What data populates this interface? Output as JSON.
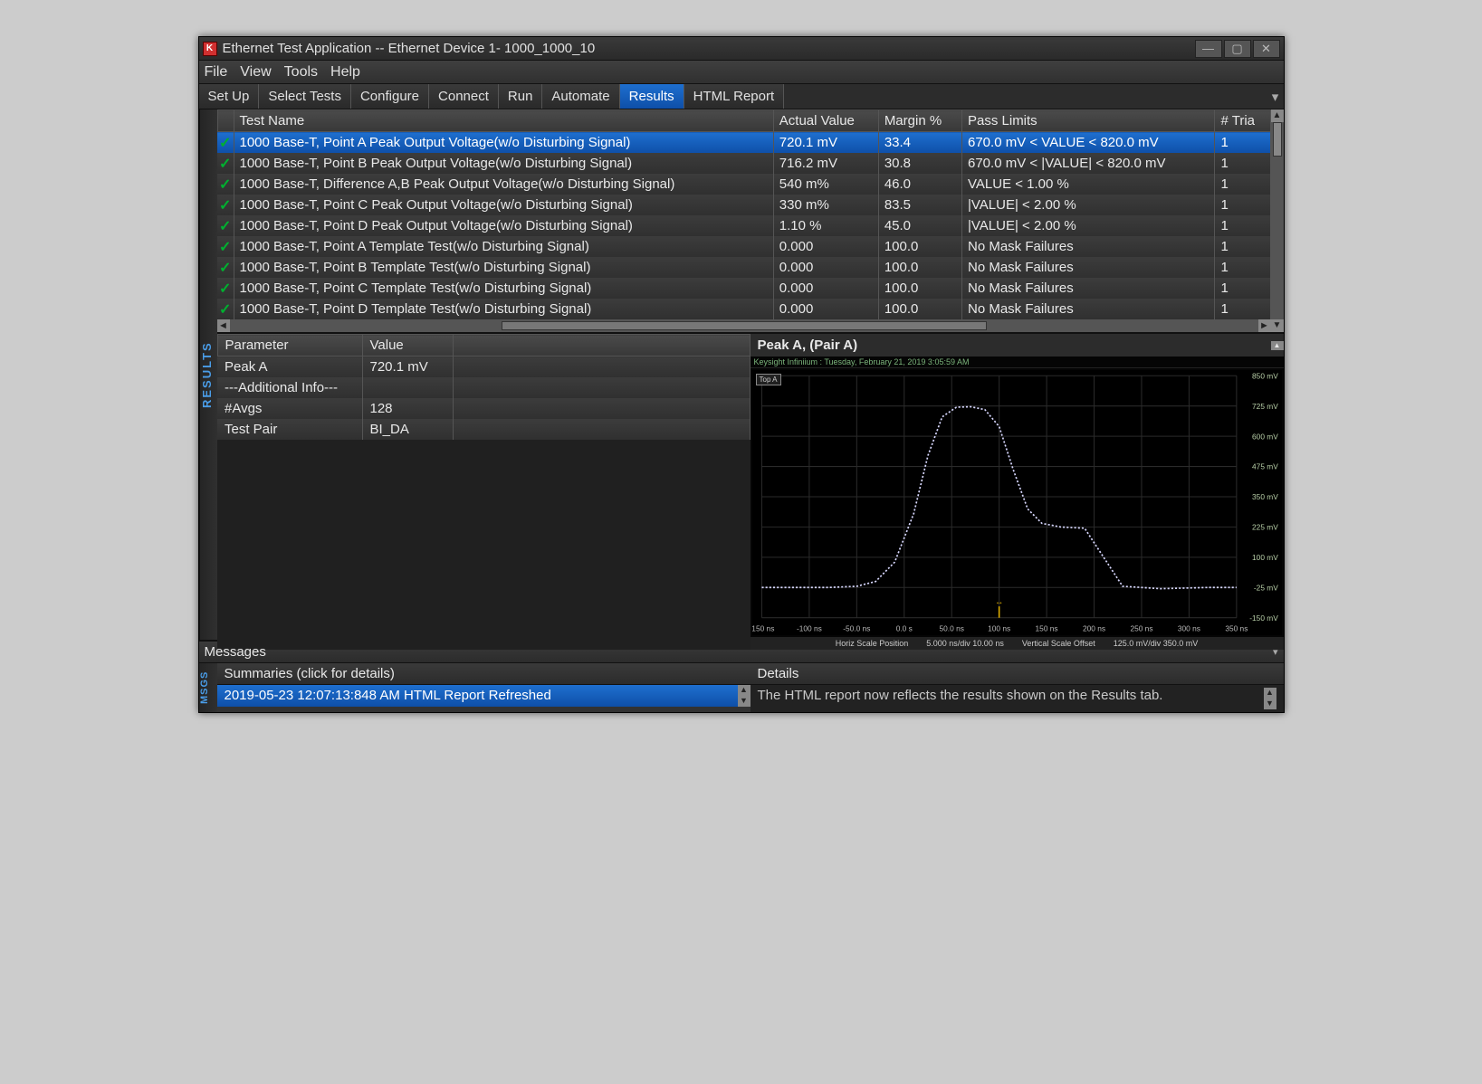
{
  "window": {
    "title": "Ethernet Test Application -- Ethernet Device 1- 1000_1000_10",
    "icon_letter": "K",
    "minimize": "—",
    "maximize": "▢",
    "close": "✕"
  },
  "menu": {
    "items": [
      "File",
      "View",
      "Tools",
      "Help"
    ]
  },
  "tabs": {
    "items": [
      "Set Up",
      "Select Tests",
      "Configure",
      "Connect",
      "Run",
      "Automate",
      "Results",
      "HTML Report"
    ],
    "active_index": 6
  },
  "side_label": "RESULTS",
  "results_table": {
    "columns": [
      "",
      "Test Name",
      "Actual Value",
      "Margin %",
      "Pass Limits",
      "# Tria"
    ],
    "selected_index": 0,
    "rows": [
      {
        "pass": true,
        "name": "1000 Base-T, Point A Peak Output Voltage(w/o Disturbing Signal)",
        "actual": "720.1 mV",
        "margin": "33.4",
        "limits": "670.0 mV < VALUE < 820.0 mV",
        "trials": "1"
      },
      {
        "pass": true,
        "name": "1000 Base-T, Point B Peak Output Voltage(w/o Disturbing Signal)",
        "actual": "716.2 mV",
        "margin": "30.8",
        "limits": "670.0 mV < |VALUE| < 820.0 mV",
        "trials": "1"
      },
      {
        "pass": true,
        "name": "1000 Base-T, Difference A,B Peak Output Voltage(w/o Disturbing Signal)",
        "actual": "540 m%",
        "margin": "46.0",
        "limits": "VALUE < 1.00 %",
        "trials": "1"
      },
      {
        "pass": true,
        "name": "1000 Base-T, Point C Peak Output Voltage(w/o Disturbing Signal)",
        "actual": "330 m%",
        "margin": "83.5",
        "limits": "|VALUE| < 2.00 %",
        "trials": "1"
      },
      {
        "pass": true,
        "name": "1000 Base-T, Point D Peak Output Voltage(w/o Disturbing Signal)",
        "actual": "1.10 %",
        "margin": "45.0",
        "limits": "|VALUE| < 2.00 %",
        "trials": "1"
      },
      {
        "pass": true,
        "name": "1000 Base-T, Point A Template Test(w/o Disturbing Signal)",
        "actual": "0.000",
        "margin": "100.0",
        "limits": "No Mask Failures",
        "trials": "1"
      },
      {
        "pass": true,
        "name": "1000 Base-T, Point B Template Test(w/o Disturbing Signal)",
        "actual": "0.000",
        "margin": "100.0",
        "limits": "No Mask Failures",
        "trials": "1"
      },
      {
        "pass": true,
        "name": "1000 Base-T, Point C Template Test(w/o Disturbing Signal)",
        "actual": "0.000",
        "margin": "100.0",
        "limits": "No Mask Failures",
        "trials": "1"
      },
      {
        "pass": true,
        "name": "1000 Base-T, Point D Template Test(w/o Disturbing Signal)",
        "actual": "0.000",
        "margin": "100.0",
        "limits": "No Mask Failures",
        "trials": "1"
      }
    ]
  },
  "param_table": {
    "columns": [
      "Parameter",
      "Value",
      ""
    ],
    "rows": [
      {
        "p": "Peak A",
        "v": "720.1 mV"
      },
      {
        "p": "---Additional Info---",
        "v": ""
      },
      {
        "p": "#Avgs",
        "v": "128"
      },
      {
        "p": "Test Pair",
        "v": "BI_DA"
      }
    ]
  },
  "chart": {
    "title": "Peak A, (Pair A)",
    "meta_caption": "Keysight Infiniium : Tuesday, February 21, 2019 3:05:59 AM",
    "badge": "Top A",
    "type": "line",
    "x_domain_ns": [
      -150,
      350
    ],
    "y_domain_mv": [
      -150,
      850
    ],
    "y_ticks": [
      {
        "v": 850,
        "label": "850 mV"
      },
      {
        "v": 725,
        "label": "725 mV"
      },
      {
        "v": 600,
        "label": "600 mV"
      },
      {
        "v": 475,
        "label": "475 mV"
      },
      {
        "v": 350,
        "label": "350 mV"
      },
      {
        "v": 225,
        "label": "225 mV"
      },
      {
        "v": 100,
        "label": "100 mV"
      },
      {
        "v": -25,
        "label": "-25 mV"
      },
      {
        "v": -150,
        "label": "-150 mV"
      }
    ],
    "x_ticks": [
      {
        "v": -150,
        "label": "-150 ns"
      },
      {
        "v": -100,
        "label": "-100 ns"
      },
      {
        "v": -50,
        "label": "-50.0 ns"
      },
      {
        "v": 0,
        "label": "0.0 s"
      },
      {
        "v": 50,
        "label": "50.0 ns"
      },
      {
        "v": 100,
        "label": "100 ns"
      },
      {
        "v": 150,
        "label": "150 ns"
      },
      {
        "v": 200,
        "label": "200 ns"
      },
      {
        "v": 250,
        "label": "250 ns"
      },
      {
        "v": 300,
        "label": "300 ns"
      },
      {
        "v": 350,
        "label": "350 ns"
      }
    ],
    "series": {
      "color": "#d8d8ff",
      "points_ns_mv": [
        [
          -150,
          -25
        ],
        [
          -80,
          -25
        ],
        [
          -50,
          -20
        ],
        [
          -30,
          0
        ],
        [
          -10,
          80
        ],
        [
          10,
          280
        ],
        [
          25,
          520
        ],
        [
          40,
          680
        ],
        [
          55,
          720
        ],
        [
          70,
          722
        ],
        [
          85,
          710
        ],
        [
          100,
          640
        ],
        [
          115,
          460
        ],
        [
          130,
          300
        ],
        [
          145,
          240
        ],
        [
          165,
          225
        ],
        [
          190,
          220
        ],
        [
          230,
          -20
        ],
        [
          270,
          -30
        ],
        [
          320,
          -25
        ],
        [
          350,
          -25
        ]
      ]
    },
    "marker_ns": 100,
    "marker_color": "#e0b000",
    "grid_color": "#2a2a2a",
    "background_color": "#000000",
    "footer_labels": [
      "Horiz Scale  Position",
      "5.000 ns/div  10.00 ns",
      "Vertical Scale  Offset",
      "125.0 mV/div   350.0 mV"
    ]
  },
  "messages_label": "Messages",
  "bottom": {
    "side_label": "MSGS",
    "summaries_header": "Summaries (click for details)",
    "summaries_text": "2019-05-23 12:07:13:848 AM HTML Report Refreshed",
    "details_header": "Details",
    "details_text": "The HTML report now reflects the results shown on the Results tab."
  }
}
